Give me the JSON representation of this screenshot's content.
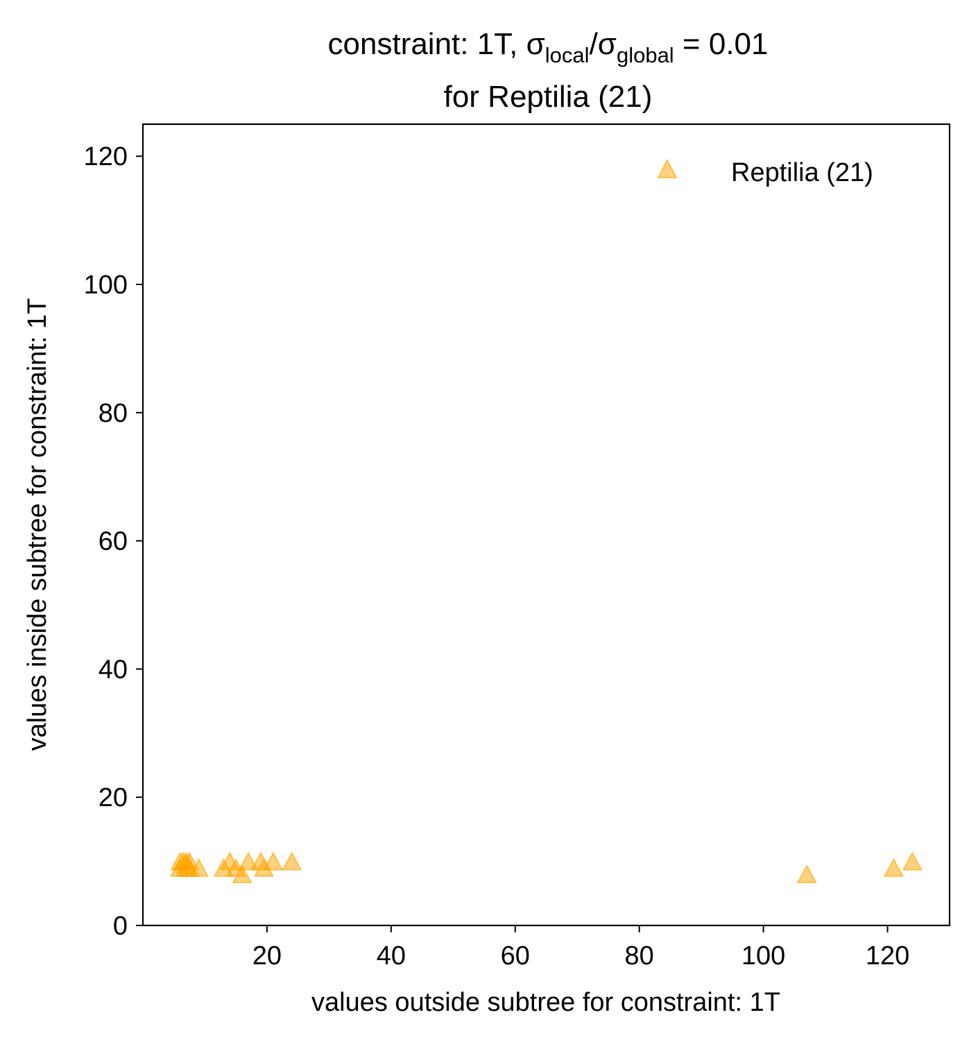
{
  "chart_data": {
    "type": "scatter",
    "title": {
      "line1_prefix": "constraint: 1T, σ",
      "line1_sub1": "local",
      "line1_mid": "/σ",
      "line1_sub2": "global",
      "line1_suffix": " =  0.01",
      "line2": "for Reptilia (21)"
    },
    "xlabel": "values outside subtree for constraint: 1T",
    "ylabel": "values inside subtree for constraint: 1T",
    "xlim": [
      0,
      130
    ],
    "ylim": [
      0,
      125
    ],
    "xticks": [
      20,
      40,
      60,
      80,
      100,
      120
    ],
    "yticks": [
      0,
      20,
      40,
      60,
      80,
      100,
      120
    ],
    "grid": false,
    "legend_position": "top-right",
    "marker": "triangle",
    "colors": {
      "marker_fill": "#ffa500",
      "marker_fill_opacity": 0.5,
      "axis": "#000000",
      "background": "#ffffff"
    },
    "series": [
      {
        "name": "Reptilia (21)",
        "points": [
          {
            "x": 6.0,
            "y": 9.0
          },
          {
            "x": 6.0,
            "y": 10.0
          },
          {
            "x": 6.5,
            "y": 10.0
          },
          {
            "x": 7.0,
            "y": 9.0
          },
          {
            "x": 7.0,
            "y": 10.0
          },
          {
            "x": 7.5,
            "y": 9.0
          },
          {
            "x": 7.5,
            "y": 10.0
          },
          {
            "x": 9.0,
            "y": 9.0
          },
          {
            "x": 13.0,
            "y": 9.0
          },
          {
            "x": 14.0,
            "y": 10.0
          },
          {
            "x": 15.0,
            "y": 9.0
          },
          {
            "x": 16.0,
            "y": 8.0
          },
          {
            "x": 17.0,
            "y": 10.0
          },
          {
            "x": 19.0,
            "y": 10.0
          },
          {
            "x": 19.5,
            "y": 9.0
          },
          {
            "x": 21.0,
            "y": 10.0
          },
          {
            "x": 24.0,
            "y": 10.0
          },
          {
            "x": 107.0,
            "y": 8.0
          },
          {
            "x": 121.0,
            "y": 9.0
          },
          {
            "x": 124.0,
            "y": 10.0
          },
          {
            "x": 7.0,
            "y": 9.5
          }
        ]
      }
    ]
  }
}
